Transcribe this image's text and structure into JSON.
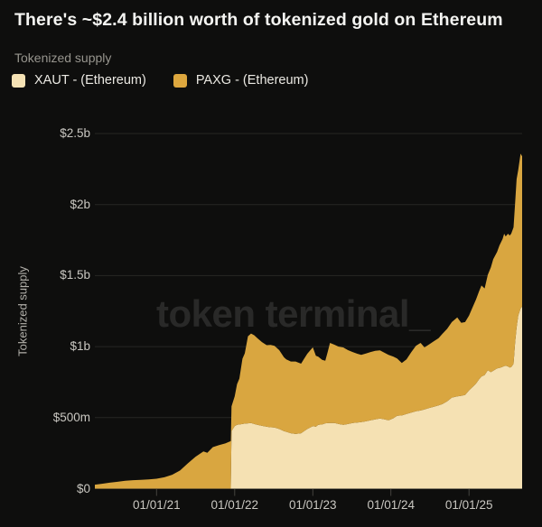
{
  "header": {
    "title": "There's ~$2.4 billion worth of tokenized gold on Ethereum"
  },
  "chart": {
    "subtitle_label": "Tokenized supply",
    "y_axis_title": "Tokenized supply",
    "watermark": "token terminal_",
    "legend": [
      {
        "label": "XAUT - (Ethereum)",
        "color": "#f5e2b4"
      },
      {
        "label": "PAXG - (Ethereum)",
        "color": "#dda73e"
      }
    ]
  },
  "colors": {
    "background": "#0e0e0d",
    "xaut_area": "#f5e1b3",
    "paxg_area": "#d9a640",
    "gridline": "#272724",
    "tick_mark": "#45443f",
    "axis_text": "#c9c7c1",
    "title_text": "#f4f4f1",
    "muted_text": "#97958e",
    "watermark_text": "rgba(128,128,128,0.24)"
  },
  "chart_data": {
    "type": "area",
    "stacked": true,
    "title": "There's ~$2.4 billion worth of tokenized gold on Ethereum",
    "subtitle": "Tokenized supply",
    "ylabel": "Tokenized supply",
    "unit": "USD millions",
    "x_unit": "decimal year",
    "xlim": [
      2020.21,
      2025.68
    ],
    "ylim": [
      0,
      2500
    ],
    "grid": "horizontal",
    "legend_position": "top-left",
    "y_ticks": [
      {
        "label": "$0",
        "value": 0
      },
      {
        "label": "$500m",
        "value": 500
      },
      {
        "label": "$1b",
        "value": 1000
      },
      {
        "label": "$1.5b",
        "value": 1500
      },
      {
        "label": "$2b",
        "value": 2000
      },
      {
        "label": "$2.5b",
        "value": 2500
      }
    ],
    "x_ticks": [
      {
        "label": "01/01/21",
        "value": 2021
      },
      {
        "label": "01/01/22",
        "value": 2022
      },
      {
        "label": "01/01/23",
        "value": 2023
      },
      {
        "label": "01/01/24",
        "value": 2024
      },
      {
        "label": "01/01/25",
        "value": 2025
      }
    ],
    "x": [
      2020.21,
      2020.3,
      2020.4,
      2020.5,
      2020.6,
      2020.7,
      2020.8,
      2020.9,
      2021.0,
      2021.1,
      2021.2,
      2021.3,
      2021.4,
      2021.5,
      2021.6,
      2021.65,
      2021.72,
      2021.8,
      2021.88,
      2021.95,
      2021.96,
      2022.0,
      2022.03,
      2022.06,
      2022.1,
      2022.13,
      2022.17,
      2022.21,
      2022.25,
      2022.29,
      2022.35,
      2022.41,
      2022.46,
      2022.51,
      2022.57,
      2022.63,
      2022.66,
      2022.72,
      2022.78,
      2022.85,
      2022.89,
      2022.93,
      2023.0,
      2023.04,
      2023.07,
      2023.12,
      2023.16,
      2023.19,
      2023.22,
      2023.28,
      2023.33,
      2023.39,
      2023.45,
      2023.51,
      2023.57,
      2023.62,
      2023.68,
      2023.74,
      2023.8,
      2023.86,
      2023.92,
      2023.97,
      2024.03,
      2024.08,
      2024.14,
      2024.2,
      2024.26,
      2024.32,
      2024.38,
      2024.43,
      2024.49,
      2024.55,
      2024.61,
      2024.66,
      2024.72,
      2024.78,
      2024.85,
      2024.9,
      2024.95,
      2025.0,
      2025.05,
      2025.09,
      2025.13,
      2025.16,
      2025.2,
      2025.24,
      2025.28,
      2025.31,
      2025.36,
      2025.39,
      2025.43,
      2025.45,
      2025.47,
      2025.5,
      2025.52,
      2025.54,
      2025.57,
      2025.59,
      2025.61,
      2025.63,
      2025.66,
      2025.68
    ],
    "series": [
      {
        "name": "XAUT - (Ethereum)",
        "color": "#f5e1b3",
        "values": [
          0,
          0,
          0,
          0,
          0,
          0,
          0,
          0,
          0,
          0,
          0,
          0,
          0,
          0,
          0,
          0,
          0,
          0,
          0,
          0,
          405,
          440,
          450,
          452,
          455,
          458,
          460,
          462,
          455,
          449,
          442,
          436,
          432,
          430,
          420,
          405,
          400,
          390,
          385,
          390,
          405,
          420,
          440,
          436,
          449,
          452,
          460,
          461,
          462,
          462,
          455,
          449,
          455,
          462,
          465,
          468,
          474,
          481,
          488,
          494,
          488,
          481,
          495,
          513,
          515,
          526,
          535,
          545,
          550,
          558,
          568,
          577,
          586,
          596,
          615,
          641,
          650,
          654,
          660,
          692,
          718,
          740,
          770,
          790,
          800,
          833,
          820,
          830,
          846,
          850,
          858,
          862,
          865,
          860,
          853,
          855,
          878,
          1026,
          1135,
          1218,
          1269,
          1282
        ]
      },
      {
        "name": "PAXG - (Ethereum)",
        "color": "#d9a640",
        "values": [
          28,
          34,
          42,
          48,
          55,
          60,
          62,
          65,
          70,
          80,
          98,
          128,
          178,
          225,
          262,
          252,
          292,
          306,
          318,
          335,
          175,
          210,
          285,
          323,
          460,
          495,
          613,
          630,
          625,
          611,
          590,
          574,
          580,
          576,
          555,
          520,
          510,
          505,
          510,
          490,
          510,
          530,
          555,
          500,
          480,
          455,
          440,
          500,
          564,
          551,
          545,
          545,
          520,
          500,
          485,
          474,
          478,
          481,
          482,
          480,
          468,
          461,
          435,
          404,
          370,
          384,
          425,
          461,
          476,
          436,
          448,
          461,
          474,
          494,
          510,
          532,
          555,
          513,
          513,
          526,
          564,
          593,
          621,
          640,
          610,
          673,
          738,
          785,
          821,
          862,
          900,
          933,
          911,
          935,
          929,
          940,
          962,
          980,
          1044,
          1026,
          1090,
          1058
        ]
      }
    ]
  }
}
